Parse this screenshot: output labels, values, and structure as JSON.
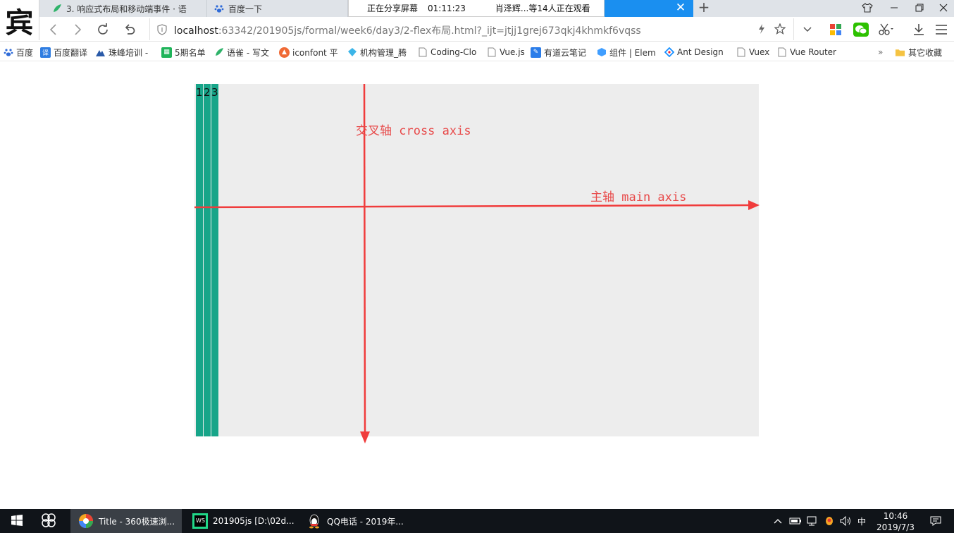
{
  "browser": {
    "logo_char": "宾",
    "tabs": [
      {
        "label": "3. 响应式布局和移动端事件 · 语",
        "icon": "yuque-leaf-icon"
      },
      {
        "label": "百度一下",
        "icon": "baidu-paw-icon"
      }
    ],
    "share_bar": {
      "status": "正在分享屏幕",
      "time": "01:11:23",
      "viewers": "肖泽辉...等14人正在观看"
    },
    "url": {
      "host": "localhost",
      "path": ":63342/201905js/formal/week6/day3/2-flex布局.html?_ijt=jtjj1grej673qkj4khmkf6vqss"
    }
  },
  "bookmarks": [
    {
      "label": "百度",
      "icon": "baidu-paw-icon"
    },
    {
      "label": "百度翻译",
      "icon": "translate-icon"
    },
    {
      "label": "珠峰培训 -",
      "icon": "mountain-icon"
    },
    {
      "label": "5期名单",
      "icon": "sheet-icon"
    },
    {
      "label": "语雀 - 写文",
      "icon": "yuque-leaf-icon"
    },
    {
      "label": "iconfont 平",
      "icon": "iconfont-icon"
    },
    {
      "label": "机构管理_腾",
      "icon": "diamond-icon"
    },
    {
      "label": "Coding-Clo",
      "icon": "page-icon"
    },
    {
      "label": "Vue.js",
      "icon": "page-icon"
    },
    {
      "label": "有道云笔记",
      "icon": "youdao-icon"
    },
    {
      "label": "组件 | Elem",
      "icon": "element-icon"
    },
    {
      "label": "Ant Design",
      "icon": "ant-design-icon"
    },
    {
      "label": "Vuex",
      "icon": "page-icon"
    },
    {
      "label": "Vue Router",
      "icon": "page-icon"
    },
    {
      "label": "»",
      "icon": ""
    },
    {
      "label": "其它收藏",
      "icon": "folder-icon"
    }
  ],
  "page": {
    "items": [
      "1",
      "2",
      "3"
    ],
    "main_axis_label": "主轴 main axis",
    "cross_axis_label": "交叉轴 cross axis",
    "colors": {
      "item": "#17a589",
      "container": "#ededed",
      "axis": "#f03c3c"
    }
  },
  "taskbar": {
    "apps": [
      {
        "label": "Title - 360极速浏...",
        "icon": "360-browser-icon"
      },
      {
        "label": "201905js [D:\\02d...",
        "icon": "webstorm-icon"
      },
      {
        "label": "QQ电话 - 2019年...",
        "icon": "qq-penguin-icon"
      }
    ],
    "ime": "中",
    "time": "10:46",
    "date": "2019/7/3"
  }
}
